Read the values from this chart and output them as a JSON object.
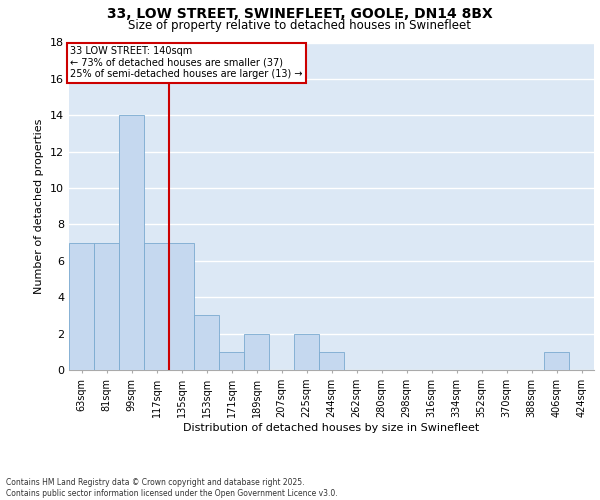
{
  "title_line1": "33, LOW STREET, SWINEFLEET, GOOLE, DN14 8BX",
  "title_line2": "Size of property relative to detached houses in Swinefleet",
  "xlabel": "Distribution of detached houses by size in Swinefleet",
  "ylabel": "Number of detached properties",
  "bar_labels": [
    "63sqm",
    "81sqm",
    "99sqm",
    "117sqm",
    "135sqm",
    "153sqm",
    "171sqm",
    "189sqm",
    "207sqm",
    "225sqm",
    "244sqm",
    "262sqm",
    "280sqm",
    "298sqm",
    "316sqm",
    "334sqm",
    "352sqm",
    "370sqm",
    "388sqm",
    "406sqm",
    "424sqm"
  ],
  "bar_values": [
    7,
    7,
    14,
    7,
    7,
    3,
    1,
    2,
    0,
    2,
    1,
    0,
    0,
    0,
    0,
    0,
    0,
    0,
    0,
    1,
    0
  ],
  "bar_color": "#c5d8ef",
  "bar_edge_color": "#7aaad0",
  "background_color": "#dce8f5",
  "grid_color": "#ffffff",
  "redline_x": 3.5,
  "annotation_text_line1": "33 LOW STREET: 140sqm",
  "annotation_text_line2": "← 73% of detached houses are smaller (37)",
  "annotation_text_line3": "25% of semi-detached houses are larger (13) →",
  "annotation_box_color": "#ffffff",
  "annotation_box_edge": "#cc0000",
  "redline_color": "#cc0000",
  "ylim": [
    0,
    18
  ],
  "yticks": [
    0,
    2,
    4,
    6,
    8,
    10,
    12,
    14,
    16,
    18
  ],
  "footer_line1": "Contains HM Land Registry data © Crown copyright and database right 2025.",
  "footer_line2": "Contains public sector information licensed under the Open Government Licence v3.0."
}
